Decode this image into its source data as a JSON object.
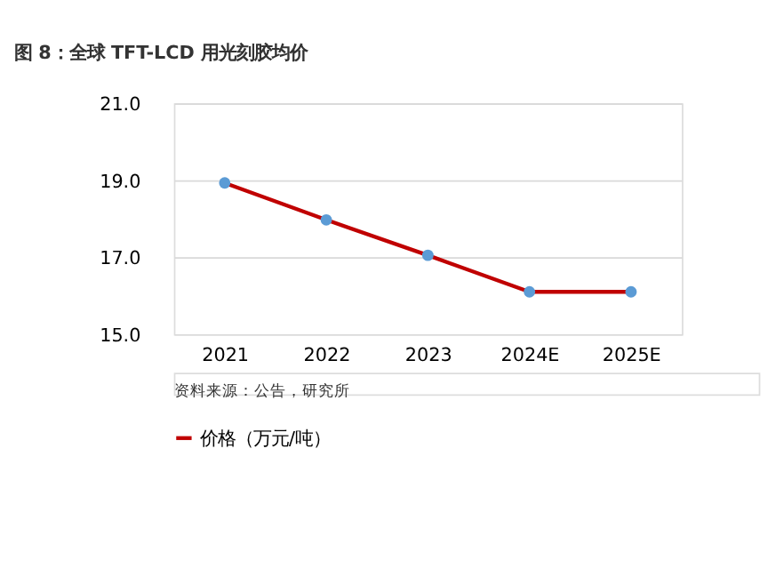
{
  "chart_data": {
    "type": "line",
    "title": "图 8：全球 TFT-LCD 用光刻胶均价",
    "categories": [
      "2021",
      "2022",
      "2023",
      "2024E",
      "2025E"
    ],
    "series": [
      {
        "name": "价格（万元/吨）",
        "color": "#c00000",
        "colors": [
          "#5b9bd5",
          "#5b9bd5",
          "#5b9bd5",
          "#5b9bd5",
          "#5b9bd5"
        ],
        "values": [
          18.93,
          17.97,
          17.05,
          16.1,
          16.1
        ]
      }
    ],
    "ylim": [
      15,
      21
    ],
    "yticks": [
      {
        "value": 15,
        "label": "15.0"
      },
      {
        "value": 17,
        "label": "17.0"
      },
      {
        "value": 19,
        "label": "19.0"
      },
      {
        "value": 21,
        "label": "21.0"
      }
    ],
    "grid": "y",
    "legend": "bottom",
    "marker": "circle",
    "line_style": "solid",
    "annotations": [
      "资料来源：公告，研究所"
    ]
  }
}
